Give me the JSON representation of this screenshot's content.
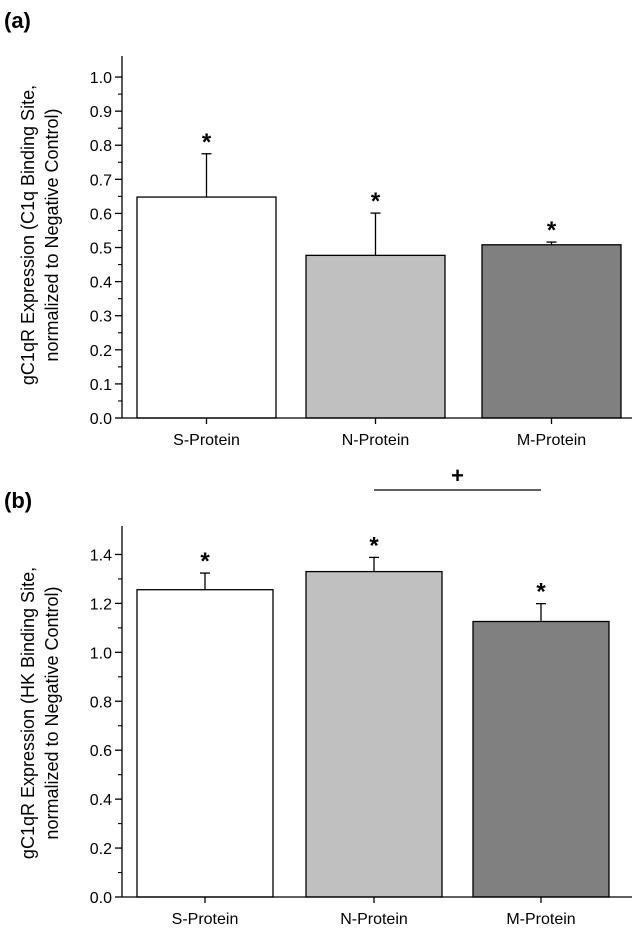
{
  "chart_data": [
    {
      "panel_label": "(a)",
      "type": "bar",
      "categories": [
        "S-Protein",
        "N-Protein",
        "M-Protein"
      ],
      "values": [
        0.648,
        0.477,
        0.508
      ],
      "errors": [
        0.127,
        0.124,
        0.008
      ],
      "significance": [
        "*",
        "*",
        "*"
      ],
      "bar_colors": [
        "#ffffff",
        "#c0c0c0",
        "#808080"
      ],
      "ylabel_lines": [
        "gC1qR Expression (C1q Binding Site,",
        "normalized to Negative Control)"
      ],
      "xlabel": "",
      "ylim": [
        0,
        1.05
      ],
      "yticks": [
        0.0,
        0.1,
        0.2,
        0.3,
        0.4,
        0.5,
        0.6,
        0.7,
        0.8,
        0.9,
        1.0
      ],
      "ytick_labels": [
        "0.0",
        "0.1",
        "0.2",
        "0.3",
        "0.4",
        "0.5",
        "0.6",
        "0.7",
        "0.8",
        "0.9",
        "1.0"
      ],
      "comparison": null
    },
    {
      "panel_label": "(b)",
      "type": "bar",
      "categories": [
        "S-Protein",
        "N-Protein",
        "M-Protein"
      ],
      "values": [
        1.256,
        1.33,
        1.126
      ],
      "errors": [
        0.068,
        0.058,
        0.073
      ],
      "significance": [
        "*",
        "*",
        "*"
      ],
      "bar_colors": [
        "#ffffff",
        "#c0c0c0",
        "#808080"
      ],
      "ylabel_lines": [
        "gC1qR Expression (HK Binding Site,",
        "normalized to Negative Control)"
      ],
      "xlabel": "",
      "ylim": [
        0,
        1.5
      ],
      "yticks": [
        0.0,
        0.2,
        0.4,
        0.6,
        0.8,
        1.0,
        1.2,
        1.4
      ],
      "ytick_labels": [
        "0.0",
        "0.2",
        "0.4",
        "0.6",
        "0.8",
        "1.0",
        "1.2",
        "1.4"
      ],
      "comparison": {
        "from": 1,
        "to": 2,
        "symbol": "+"
      }
    }
  ]
}
